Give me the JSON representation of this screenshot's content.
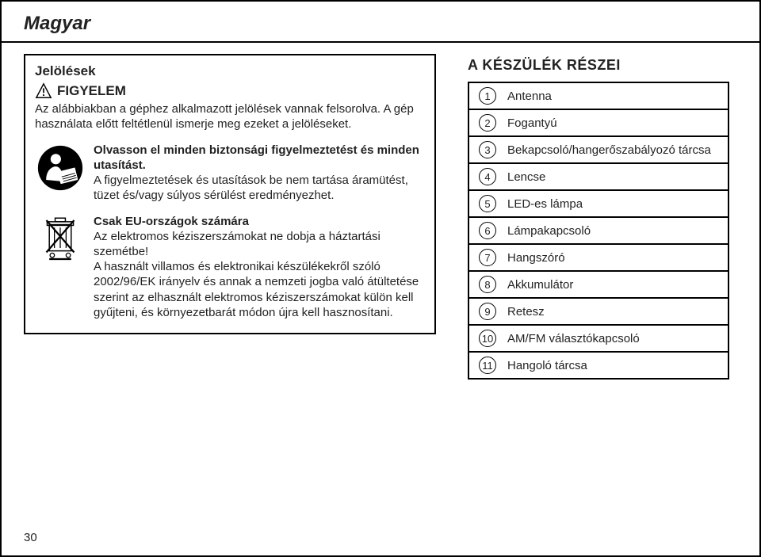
{
  "language_header": "Magyar",
  "left": {
    "title": "Jelölések",
    "warning_label": "FIGYELEM",
    "intro": "Az alábbiakban a géphez alkalmazott jelölések vannak felsorolva. A gép használata előtt feltétlenül ismerje meg ezeket a jelöléseket.",
    "manual_bold": "Olvasson el minden biztonsági figyelmeztetést és minden utasítást.",
    "manual_rest": "A figyelmeztetések és utasítások be nem tartása áramütést, tüzet és/vagy súlyos sérülést eredményezhet.",
    "weee_bold": "Csak EU-országok számára",
    "weee_line2": "Az elektromos kéziszerszámokat ne dobja a háztartási szemétbe!",
    "weee_rest": "A használt villamos és elektronikai készülékekről szóló 2002/96/EK irányelv és annak a nemzeti jogba való átültetése szerint az elhasznált elektromos kéziszerszámokat külön kell gyűjteni, és környezetbarát módon újra kell hasznosítani."
  },
  "right": {
    "title": "A KÉSZÜLÉK RÉSZEI",
    "items": [
      {
        "n": "1",
        "label": "Antenna"
      },
      {
        "n": "2",
        "label": "Fogantyú"
      },
      {
        "n": "3",
        "label": "Bekapcsoló/hangerőszabályozó tárcsa"
      },
      {
        "n": "4",
        "label": "Lencse"
      },
      {
        "n": "5",
        "label": "LED-es lámpa"
      },
      {
        "n": "6",
        "label": "Lámpakapcsoló"
      },
      {
        "n": "7",
        "label": "Hangszóró"
      },
      {
        "n": "8",
        "label": "Akkumulátor"
      },
      {
        "n": "9",
        "label": "Retesz"
      },
      {
        "n": "10",
        "label": "AM/FM választókapcsoló"
      },
      {
        "n": "11",
        "label": "Hangoló tárcsa"
      }
    ]
  },
  "page_number": "30"
}
